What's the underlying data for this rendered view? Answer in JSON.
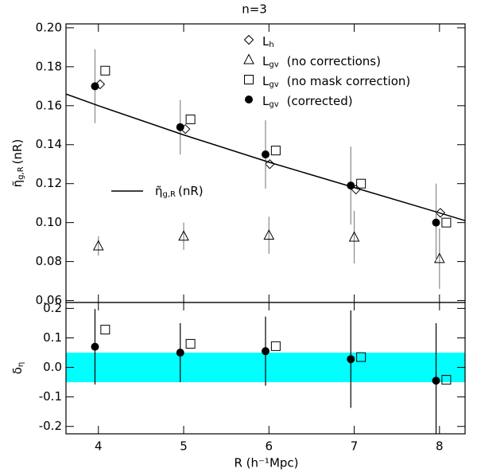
{
  "chart_data": [
    {
      "type": "scatter",
      "title": "n=3",
      "ylabel": {
        "text": "η̃",
        "sub": "g,R",
        "suffix": "(nR)"
      },
      "xlim": [
        3.62,
        8.3
      ],
      "ylim": [
        0.059,
        0.202
      ],
      "xticks": [
        4,
        5,
        6,
        7,
        8
      ],
      "xtick_labels": false,
      "yticks": [
        0.06,
        0.08,
        {
          "value": 0.1,
          "label": "0.10"
        },
        0.12,
        0.14,
        0.16,
        0.18,
        {
          "value": 0.2,
          "label": "0.20"
        }
      ],
      "legend_position": "top-right",
      "series": [
        {
          "name": "L",
          "name_sub": "h",
          "marker": "diamond",
          "color": "#000000",
          "x": [
            4.02,
            5.02,
            6.01,
            7.02,
            8.01
          ],
          "values": [
            0.171,
            0.148,
            0.13,
            0.117,
            0.105
          ]
        },
        {
          "name": "L",
          "name_sub": "gv",
          "name_suffix": "(no corrections)",
          "marker": "triangle",
          "color": "#000000",
          "error_color": "#888888",
          "x": [
            4.0,
            5.0,
            6.0,
            7.0,
            8.0
          ],
          "values": [
            0.088,
            0.093,
            0.0935,
            0.0925,
            0.0815
          ],
          "errors": [
            0.005,
            0.007,
            0.0095,
            0.0135,
            0.0155
          ]
        },
        {
          "name": "L",
          "name_sub": "gv",
          "name_suffix": "(no mask correction)",
          "marker": "square",
          "color": "#000000",
          "x": [
            4.08,
            5.08,
            6.08,
            7.08,
            8.08
          ],
          "values": [
            0.178,
            0.153,
            0.137,
            0.12,
            0.1
          ]
        },
        {
          "name": "L",
          "name_sub": "gv",
          "name_suffix": "(corrected)",
          "marker": "circle",
          "color": "#000000",
          "error_color": "#888888",
          "x": [
            3.96,
            4.96,
            5.96,
            6.96,
            7.96
          ],
          "values": [
            0.17,
            0.149,
            0.135,
            0.119,
            0.1
          ],
          "errors": [
            0.019,
            0.014,
            0.0175,
            0.02,
            0.02
          ]
        },
        {
          "name": "η̃",
          "name_sub": "g,R",
          "name_suffix": "(nR)",
          "marker": "line",
          "color": "#000000",
          "x": [
            3.62,
            4,
            5,
            6,
            7,
            8,
            8.3
          ],
          "values": [
            0.166,
            0.16,
            0.145,
            0.131,
            0.118,
            0.105,
            0.101
          ]
        }
      ]
    },
    {
      "type": "scatter",
      "xlabel": "R (h⁻¹Mpc)",
      "ylabel": {
        "text": "δ",
        "sub": "η"
      },
      "xlim": [
        3.62,
        8.3
      ],
      "ylim": [
        -0.225,
        0.22
      ],
      "xticks": [
        4,
        5,
        6,
        7,
        8
      ],
      "yticks": [
        -0.2,
        -0.1,
        {
          "value": 0,
          "label": "0.0"
        },
        0.1,
        0.2
      ],
      "band": [
        -0.05,
        0.05
      ],
      "band_color": "#00ffff",
      "series": [
        {
          "marker": "circle",
          "color": "#000000",
          "error_color": "#000000",
          "x": [
            3.96,
            4.96,
            5.96,
            6.96,
            7.96
          ],
          "values": [
            0.07,
            0.05,
            0.055,
            0.028,
            -0.045
          ],
          "errors": [
            0.128,
            0.1,
            0.117,
            0.165,
            0.195
          ]
        },
        {
          "marker": "square",
          "color": "#000000",
          "x": [
            4.08,
            5.08,
            6.08,
            7.08,
            8.08
          ],
          "values": [
            0.128,
            0.08,
            0.072,
            0.035,
            -0.042
          ]
        }
      ]
    }
  ]
}
